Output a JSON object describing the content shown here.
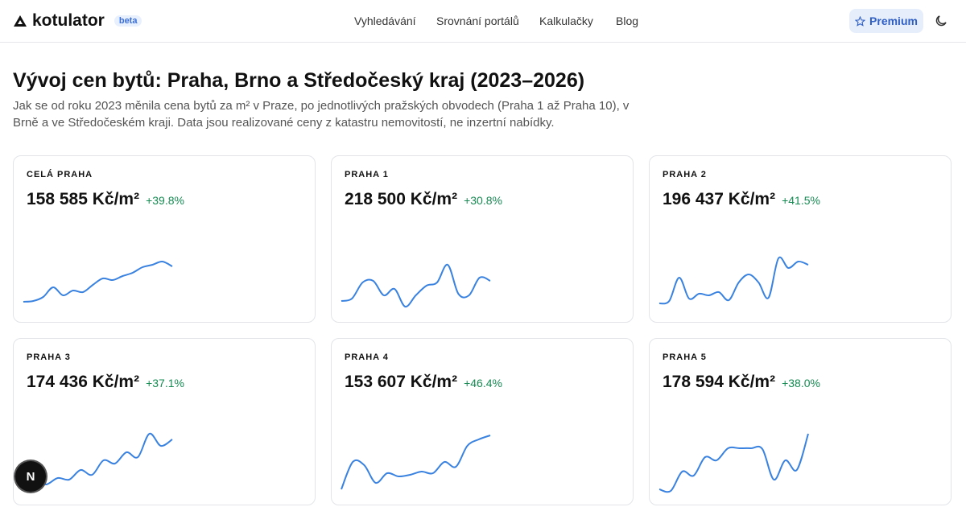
{
  "header": {
    "logo": "kotulator",
    "badge": "beta",
    "nav": [
      "Vyhledávání",
      "Srovnání portálů",
      "Kalkulačky",
      "Blog"
    ],
    "premium": "Premium"
  },
  "page": {
    "title": "Vývoj cen bytů: Praha, Brno a Středočeský kraj (2023–2026)",
    "description": "Jak se od roku 2023 měnila cena bytů za m² v Praze, po jednotlivých pražských obvodech (Praha 1 až Praha 10), v Brně a ve Středočeském kraji. Data jsou realizované ceny z katastru nemovitostí, ne inzertní nabídky."
  },
  "cards": [
    {
      "label": "CELÁ PRAHA",
      "price": "158 585 Kč/m²",
      "change": "+39.8%",
      "spark": [
        24,
        25,
        30,
        42,
        32,
        38,
        36,
        45,
        53,
        51,
        56,
        60,
        67,
        70,
        74,
        68
      ]
    },
    {
      "label": "PRAHA 1",
      "price": "218 500 Kč/m²",
      "change": "+30.8%",
      "spark": [
        25,
        28,
        48,
        50,
        32,
        40,
        18,
        32,
        44,
        48,
        70,
        34,
        32,
        54,
        50
      ]
    },
    {
      "label": "PRAHA 2",
      "price": "196 437 Kč/m²",
      "change": "+41.5%",
      "spark": [
        22,
        25,
        54,
        28,
        34,
        32,
        36,
        26,
        48,
        58,
        48,
        29,
        78,
        66,
        74,
        70
      ]
    },
    {
      "label": "PRAHA 3",
      "price": "174 436 Kč/m²",
      "change": "+37.1%",
      "spark": [
        20,
        28,
        24,
        32,
        30,
        42,
        36,
        54,
        50,
        64,
        58,
        87,
        72,
        80
      ]
    },
    {
      "label": "PRAHA 4",
      "price": "153 607 Kč/m²",
      "change": "+46.4%",
      "spark": [
        18,
        52,
        48,
        26,
        38,
        34,
        36,
        40,
        38,
        52,
        46,
        72,
        80,
        85
      ]
    },
    {
      "label": "PRAHA 5",
      "price": "178 594 Kč/m²",
      "change": "+38.0%",
      "spark": [
        18,
        16,
        40,
        35,
        58,
        54,
        69,
        69,
        69,
        68,
        30,
        54,
        42,
        87
      ]
    }
  ],
  "fab": "N"
}
